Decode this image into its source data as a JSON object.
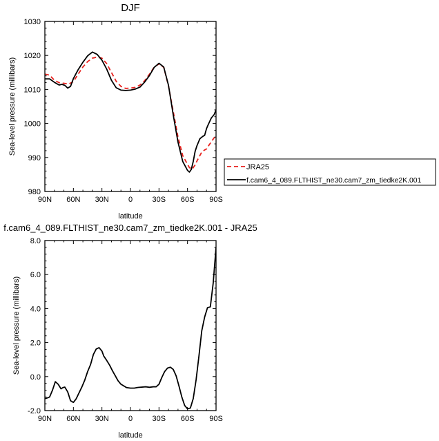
{
  "chart_data": [
    {
      "type": "line",
      "title": "DJF",
      "xlabel": "latitude",
      "ylabel": "Sea-level pressure (millibars)",
      "xlim": [
        -90,
        90
      ],
      "ylim": [
        980,
        1030
      ],
      "x_ticks": [
        -90,
        -60,
        -30,
        0,
        30,
        60,
        90
      ],
      "x_tick_labels": [
        "90N",
        "60N",
        "30N",
        "0",
        "30S",
        "60S",
        "90S"
      ],
      "y_ticks": [
        980,
        990,
        1000,
        1010,
        1020,
        1030
      ],
      "y_tick_labels": [
        "980",
        "990",
        "1000",
        "1010",
        "1020",
        "1030"
      ],
      "grid": false,
      "legend_position": "right",
      "series": [
        {
          "name": "JRA25",
          "color": "#e8221e",
          "dash": "dashed",
          "x": [
            -90,
            -85,
            -80,
            -75,
            -70,
            -65,
            -60,
            -55,
            -50,
            -45,
            -40,
            -35,
            -30,
            -25,
            -20,
            -15,
            -10,
            -5,
            0,
            5,
            10,
            15,
            20,
            25,
            30,
            35,
            40,
            45,
            50,
            55,
            60,
            62,
            65,
            68,
            70,
            75,
            78,
            80,
            82,
            85,
            88,
            90
          ],
          "y": [
            1014.5,
            1014.2,
            1012.7,
            1012.0,
            1011.8,
            1011.6,
            1012.3,
            1014.5,
            1016.6,
            1018.2,
            1019.2,
            1019.5,
            1019.2,
            1017.6,
            1015.0,
            1012.4,
            1010.9,
            1010.3,
            1010.4,
            1010.6,
            1011.3,
            1012.6,
            1014.5,
            1016.6,
            1017.5,
            1016.5,
            1011.0,
            1003.5,
            996.0,
            990.5,
            988.0,
            987.0,
            986.6,
            987.8,
            989.0,
            991.6,
            992.2,
            992.5,
            993.4,
            994.6,
            995.8,
            996.2
          ]
        },
        {
          "name": "f.cam6_4_089.FLTHIST_ne30.cam7_zm_tiedke2K.001",
          "color": "#000000",
          "dash": "solid",
          "x": [
            -90,
            -85,
            -80,
            -75,
            -72,
            -69,
            -66,
            -63,
            -60,
            -55,
            -50,
            -45,
            -40,
            -35,
            -30,
            -25,
            -20,
            -15,
            -10,
            -5,
            0,
            5,
            10,
            15,
            20,
            25,
            30,
            35,
            40,
            45,
            50,
            55,
            60,
            62,
            64,
            66,
            68,
            70,
            73,
            76,
            78,
            80,
            82,
            85,
            88,
            90
          ],
          "y": [
            1013.1,
            1013.1,
            1012.1,
            1011.3,
            1011.5,
            1011.2,
            1010.4,
            1010.9,
            1013.2,
            1015.8,
            1018.0,
            1019.9,
            1021.0,
            1020.3,
            1018.6,
            1016.0,
            1012.7,
            1010.5,
            1009.8,
            1009.7,
            1009.8,
            1010.1,
            1010.7,
            1012.2,
            1014.1,
            1016.5,
            1017.7,
            1016.6,
            1011.2,
            1002.5,
            994.5,
            988.8,
            986.2,
            985.7,
            986.5,
            988.8,
            991.8,
            993.5,
            995.5,
            996.2,
            996.5,
            998.5,
            999.8,
            1001.6,
            1002.6,
            1004.0
          ]
        }
      ]
    },
    {
      "type": "line",
      "title": "f.cam6_4_089.FLTHIST_ne30.cam7_zm_tiedke2K.001 - JRA25",
      "xlabel": "latitude",
      "ylabel": "Sea-level pressure (millibars)",
      "xlim": [
        -90,
        90
      ],
      "ylim": [
        -2.0,
        8.0
      ],
      "x_ticks": [
        -90,
        -60,
        -30,
        0,
        30,
        60,
        90
      ],
      "x_tick_labels": [
        "90N",
        "60N",
        "30N",
        "0",
        "30S",
        "60S",
        "90S"
      ],
      "y_ticks": [
        -2,
        0,
        2,
        4,
        6,
        8
      ],
      "y_tick_labels": [
        "-2.0",
        "0.0",
        "2.0",
        "4.0",
        "6.0",
        "8.0"
      ],
      "grid": false,
      "series": [
        {
          "color": "#000000",
          "dash": "solid",
          "x": [
            -90,
            -87,
            -85,
            -82,
            -79,
            -76,
            -73,
            -71,
            -69,
            -66,
            -63,
            -60,
            -57,
            -54,
            -51,
            -48,
            -45,
            -42,
            -39,
            -36,
            -33,
            -30,
            -28,
            -25,
            -22,
            -19,
            -16,
            -13,
            -10,
            -7,
            -4,
            0,
            4,
            8,
            12,
            16,
            20,
            24,
            27,
            30,
            33,
            36,
            39,
            42,
            45,
            48,
            51,
            54,
            57,
            60,
            63,
            66,
            69,
            72,
            75,
            78,
            81,
            84,
            87,
            90
          ],
          "y": [
            -1.3,
            -1.25,
            -1.2,
            -0.8,
            -0.3,
            -0.45,
            -0.72,
            -0.65,
            -0.62,
            -0.9,
            -1.42,
            -1.52,
            -1.3,
            -0.95,
            -0.6,
            -0.2,
            0.3,
            0.7,
            1.3,
            1.62,
            1.7,
            1.5,
            1.2,
            0.95,
            0.68,
            0.35,
            0.05,
            -0.25,
            -0.45,
            -0.55,
            -0.65,
            -0.68,
            -0.68,
            -0.64,
            -0.62,
            -0.6,
            -0.63,
            -0.6,
            -0.6,
            -0.45,
            -0.05,
            0.3,
            0.5,
            0.55,
            0.42,
            0.05,
            -0.55,
            -1.2,
            -1.7,
            -1.9,
            -1.85,
            -1.3,
            -0.2,
            1.2,
            2.7,
            3.5,
            4.05,
            4.1,
            5.5,
            7.6
          ]
        }
      ]
    }
  ]
}
